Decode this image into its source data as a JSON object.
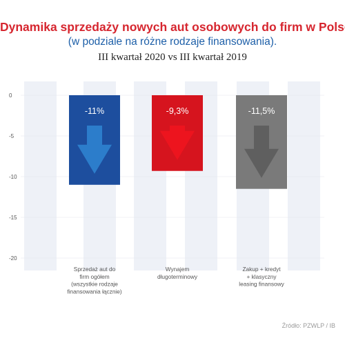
{
  "header": {
    "title": "Dynamika sprzedaży nowych aut osobowych do firm w Polsce",
    "subtitle": "(w podziale na różne rodzaje finansowania).",
    "period": "III kwartał 2020 vs III kwartał 2019"
  },
  "source": "Źródło: PZWLP / IB",
  "colors": {
    "series_1": "#1d4e9e",
    "series_2": "#d6141e",
    "series_3": "#7a7a7a",
    "stripe": "#eef1f7",
    "axis_text": "#555555"
  },
  "chart_data": {
    "type": "bar",
    "categories": [
      [
        "Sprzedaż aut do",
        "firm ogółem",
        "(wszystkie rodzaje",
        "finansowania łącznie)"
      ],
      [
        "Wynajem",
        "długoterminowy"
      ],
      [
        "Zakup + kredyt",
        "+ klasyczny",
        "leasing finansowy"
      ]
    ],
    "values": [
      -11,
      -9.3,
      -11.5
    ],
    "value_labels": [
      "-11%",
      "-9,3%",
      "-11,5%"
    ],
    "ylim": [
      -20,
      0
    ],
    "yticks": [
      0,
      -5,
      -10,
      -15,
      -20
    ],
    "grid": false,
    "legend": "none"
  }
}
